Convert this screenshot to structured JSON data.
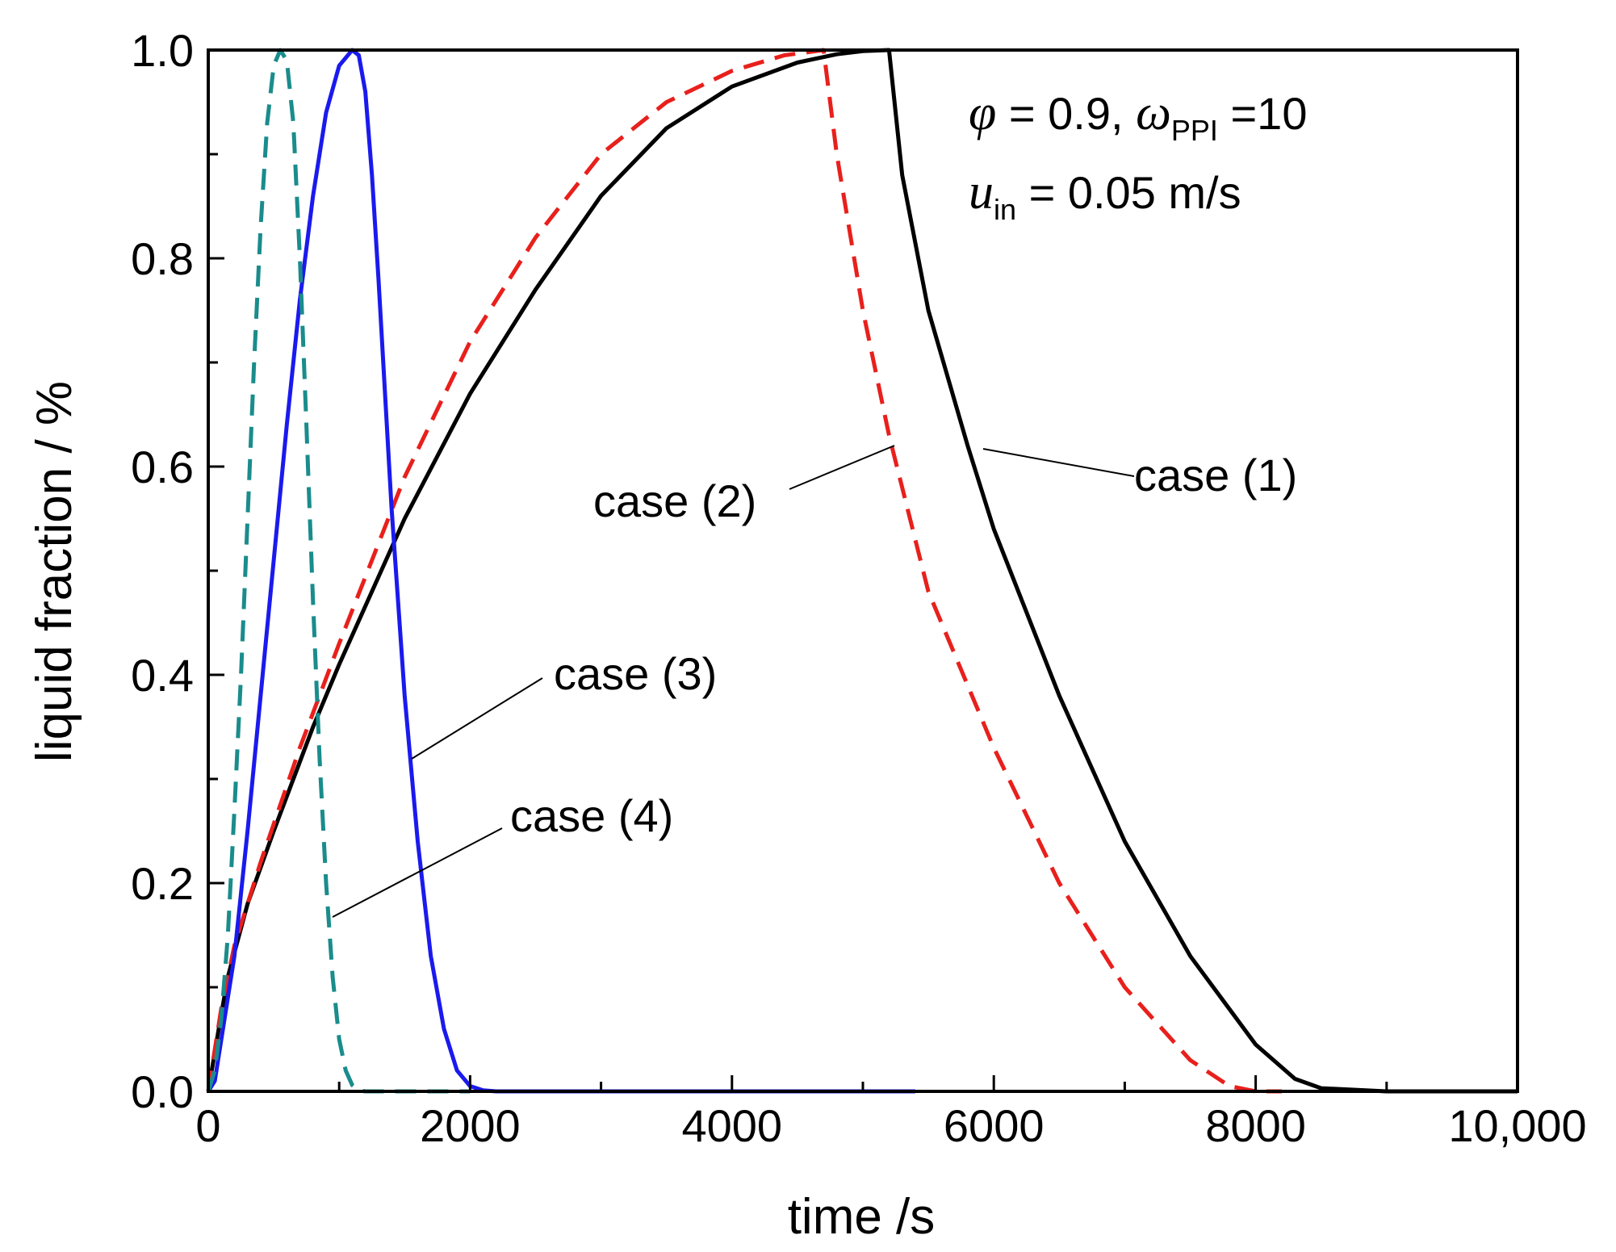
{
  "chart_data": {
    "type": "line",
    "title": "",
    "xlabel": "time /s",
    "ylabel": "liquid fraction / %",
    "xlim": [
      0,
      10000
    ],
    "ylim": [
      0,
      1.0
    ],
    "x_ticks": [
      0,
      2000,
      4000,
      6000,
      8000,
      10000
    ],
    "x_tick_labels": [
      "0",
      "2000",
      "4000",
      "6000",
      "8000",
      "10,000"
    ],
    "y_ticks": [
      0,
      0.2,
      0.4,
      0.6,
      0.8,
      1.0
    ],
    "y_tick_labels": [
      "0.0",
      "0.2",
      "0.4",
      "0.6",
      "0.8",
      "1.0"
    ],
    "grid": false,
    "annotation": {
      "phi_symbol": "φ",
      "phi_text": " = 0.9, ",
      "omega_symbol": "ω",
      "omega_sub": "PPI",
      "omega_text": " =10",
      "u_symbol": "u",
      "u_sub": "in",
      "u_text": " = 0.05 m/s"
    },
    "series": [
      {
        "name": "case (1)",
        "color": "#000000",
        "dash": "solid",
        "label": "case (1)",
        "x": [
          0,
          80,
          150,
          300,
          500,
          800,
          1000,
          1500,
          2000,
          2500,
          3000,
          3500,
          4000,
          4500,
          4800,
          5000,
          5200,
          5300,
          5500,
          5800,
          6000,
          6500,
          7000,
          7500,
          8000,
          8300,
          8500,
          9000,
          9500,
          10000
        ],
        "values": [
          0,
          0.06,
          0.11,
          0.18,
          0.25,
          0.35,
          0.41,
          0.55,
          0.67,
          0.77,
          0.86,
          0.925,
          0.965,
          0.988,
          0.996,
          0.999,
          1.0,
          0.88,
          0.75,
          0.62,
          0.54,
          0.38,
          0.24,
          0.13,
          0.045,
          0.012,
          0.003,
          0.0,
          0.0,
          0.0
        ]
      },
      {
        "name": "case (2)",
        "color": "#e8201c",
        "dash": "dashed",
        "label": "case (2)",
        "x": [
          0,
          100,
          200,
          400,
          700,
          1000,
          1500,
          2000,
          2500,
          3000,
          3500,
          4000,
          4400,
          4700,
          4800,
          5000,
          5200,
          5500,
          6000,
          6500,
          7000,
          7500,
          7800,
          8000,
          8200
        ],
        "values": [
          0,
          0.08,
          0.14,
          0.22,
          0.33,
          0.43,
          0.59,
          0.72,
          0.82,
          0.9,
          0.95,
          0.98,
          0.995,
          1.0,
          0.9,
          0.75,
          0.63,
          0.48,
          0.33,
          0.2,
          0.1,
          0.03,
          0.005,
          0.0,
          0.0
        ]
      },
      {
        "name": "case (3)",
        "color": "#1a1aee",
        "dash": "solid",
        "label": "case (3)",
        "x": [
          0,
          50,
          100,
          200,
          300,
          400,
          500,
          600,
          700,
          800,
          900,
          1000,
          1100,
          1150,
          1200,
          1250,
          1300,
          1350,
          1400,
          1500,
          1600,
          1700,
          1800,
          1900,
          2000,
          2100,
          2200,
          2400,
          3000,
          4000,
          5000,
          5400
        ],
        "values": [
          0,
          0.01,
          0.05,
          0.13,
          0.25,
          0.38,
          0.51,
          0.64,
          0.76,
          0.86,
          0.94,
          0.985,
          1.0,
          0.995,
          0.96,
          0.88,
          0.78,
          0.67,
          0.56,
          0.38,
          0.24,
          0.13,
          0.06,
          0.02,
          0.005,
          0.001,
          0.0,
          0.0,
          0.0,
          0.0,
          0.0,
          0.0
        ]
      },
      {
        "name": "case (4)",
        "color": "#1a8c8c",
        "dash": "dashed",
        "label": "case (4)",
        "x": [
          0,
          50,
          100,
          150,
          200,
          250,
          300,
          350,
          400,
          450,
          500,
          550,
          600,
          650,
          700,
          750,
          800,
          850,
          900,
          950,
          1000,
          1050,
          1100,
          1150,
          1200,
          1250,
          1300,
          1400,
          1600,
          2000
        ],
        "values": [
          0,
          0.02,
          0.07,
          0.15,
          0.27,
          0.4,
          0.55,
          0.7,
          0.83,
          0.93,
          0.985,
          1.0,
          0.99,
          0.93,
          0.8,
          0.64,
          0.47,
          0.32,
          0.2,
          0.11,
          0.05,
          0.02,
          0.006,
          0.001,
          0.0,
          0.0,
          0.0,
          0.0,
          0.0,
          0.0
        ]
      }
    ]
  }
}
